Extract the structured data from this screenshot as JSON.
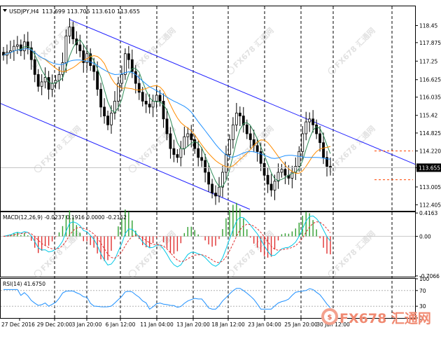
{
  "header": {
    "symbol": "USDJPY,H4",
    "ohlc": "113.699 113.705 113.610 113.655"
  },
  "watermark": "FX678 汇通网",
  "chart_data": [
    {
      "type": "candlestick",
      "symbol": "USDJPY",
      "timeframe": "H4",
      "ylim": [
        112.2,
        119.1
      ],
      "y_ticks": [
        118.45,
        117.875,
        117.25,
        116.625,
        116.035,
        115.42,
        114.825,
        114.22,
        113.655,
        113.005,
        112.405
      ],
      "y_tick_labels": [
        "118.45",
        "117.875",
        "117.25",
        "116.625",
        "116.035",
        "115.42",
        "114.825",
        "114.220",
        "113.655",
        "113.005",
        "112.405"
      ],
      "current_price": "113.655",
      "x_tick_labels": [
        "27 Dec 2016",
        "29 Dec 20:00",
        "3 Jan 20:00",
        "6 Jan 12:00",
        "11 Jan 04:00",
        "13 Jan 20:00",
        "18 Jan 12:00",
        "23 Jan 04:00",
        "25 Jan 20:00",
        "30 Jan 12:00"
      ],
      "close_series": [
        117.45,
        117.55,
        117.6,
        117.75,
        117.8,
        117.6,
        117.9,
        117.7,
        117.3,
        116.8,
        116.4,
        116.55,
        116.7,
        116.3,
        116.5,
        116.6,
        116.8,
        117.2,
        118.1,
        118.4,
        118.0,
        117.8,
        117.6,
        117.2,
        117.5,
        117.1,
        116.9,
        116.3,
        115.7,
        115.4,
        115.1,
        115.5,
        115.9,
        116.5,
        116.8,
        117.5,
        117.3,
        116.9,
        116.5,
        116.2,
        115.9,
        115.8,
        115.7,
        115.9,
        116.1,
        115.9,
        115.3,
        114.8,
        114.3,
        114.1,
        114.0,
        114.3,
        114.7,
        114.8,
        114.6,
        114.3,
        114.0,
        113.9,
        113.5,
        113.1,
        112.8,
        112.7,
        113.0,
        113.5,
        114.1,
        114.6,
        115.1,
        115.5,
        115.4,
        115.1,
        114.8,
        114.6,
        114.4,
        114.2,
        113.8,
        113.4,
        113.1,
        112.9,
        113.2,
        113.5,
        113.6,
        113.4,
        113.3,
        113.5,
        113.7,
        114.2,
        114.8,
        115.2,
        115.3,
        115.1,
        114.8,
        114.5,
        114.0,
        113.7,
        113.65
      ]
    },
    {
      "type": "line",
      "title": "MACD(12,26,9) -0.0237 0.1916 0.0000 -0.2152",
      "y_tick_labels": [
        "0.4163",
        "0.00",
        "-0.7066"
      ],
      "ylim": [
        -0.72,
        0.43
      ]
    },
    {
      "type": "line",
      "title": "RSI(14) 41.6750",
      "y_tick_labels": [
        "100",
        "70",
        "30",
        "0"
      ],
      "ylim": [
        0,
        100
      ]
    }
  ]
}
